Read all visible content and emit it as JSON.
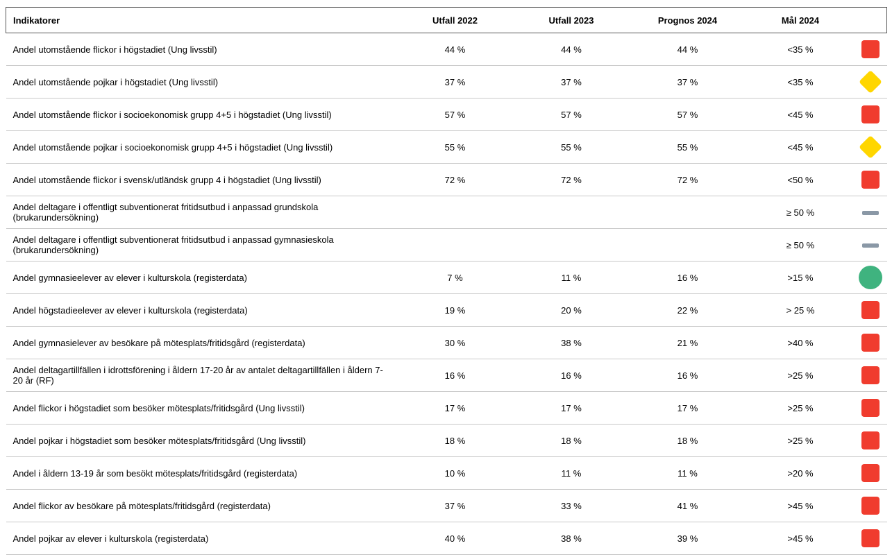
{
  "table": {
    "header": [
      "Indikatorer",
      "Utfall 2022",
      "Utfall 2023",
      "Prognos 2024",
      "Mål 2024"
    ],
    "rows": [
      [
        "Andel utomstående flickor i högstadiet (Ung livsstil)",
        "44 %",
        "44 %",
        "44 %",
        "<35 %"
      ],
      [
        "Andel utomstående pojkar i högstadiet (Ung livsstil)",
        "37 %",
        "37 %",
        "37 %",
        "<35 %"
      ],
      [
        "Andel utomstående flickor i socioekonomisk grupp 4+5 i högstadiet (Ung livsstil)",
        "57 %",
        "57 %",
        "57 %",
        "<45 %"
      ],
      [
        "Andel utomstående pojkar i socioekonomisk grupp 4+5 i högstadiet (Ung livsstil)",
        "55 %",
        "55 %",
        "55 %",
        "<45 %"
      ],
      [
        "Andel utomstående flickor i svensk/utländsk grupp 4 i högstadiet (Ung livsstil)",
        "72 %",
        "72 %",
        "72 %",
        "<50 %"
      ],
      [
        "Andel deltagare i offentligt subventionerat fritidsutbud i anpassad grundskola (brukarundersökning)",
        null,
        null,
        null,
        "≥ 50 %"
      ],
      [
        "Andel deltagare i offentligt subventionerat fritidsutbud i anpassad gymnasieskola (brukarundersökning)",
        null,
        null,
        null,
        "≥ 50 %"
      ],
      [
        "Andel gymnasieelever av elever i kulturskola (registerdata)",
        "7 %",
        "11 %",
        "16 %",
        ">15 %"
      ],
      [
        "Andel högstadieelever av elever i kulturskola (registerdata)",
        "19 %",
        "20 %",
        "22 %",
        "> 25 %"
      ],
      [
        "Andel gymnasielever av besökare på mötesplats/fritidsgård (registerdata)",
        "30 %",
        "38 %",
        "21 %",
        ">40 %"
      ],
      [
        "Andel deltagartillfällen i idrottsförening i åldern 17-20 år av antalet deltagartillfällen i åldern 7-20 år (RF)",
        "16 %",
        "16 %",
        "16 %",
        ">25 %"
      ],
      [
        "Andel flickor i högstadiet som besöker mötesplats/fritidsgård (Ung livsstil)",
        "17 %",
        "17 %",
        "17 %",
        ">25 %"
      ],
      [
        "Andel pojkar i högstadiet som besöker mötesplats/fritidsgård (Ung livsstil)",
        "18 %",
        "18 %",
        "18 %",
        ">25 %"
      ],
      [
        "Andel i åldern 13-19 år som besökt mötesplats/fritidsgård (registerdata)",
        "10 %",
        "11 %",
        "11 %",
        ">20 %"
      ],
      [
        "Andel flickor av besökare på mötesplats/fritidsgård (registerdata)",
        "37 %",
        "33 %",
        "41 %",
        ">45 %"
      ],
      [
        "Andel pojkar av elever i kulturskola (registerdata)",
        "40 %",
        "38 %",
        "39 %",
        ">45 %"
      ]
    ]
  }
}
